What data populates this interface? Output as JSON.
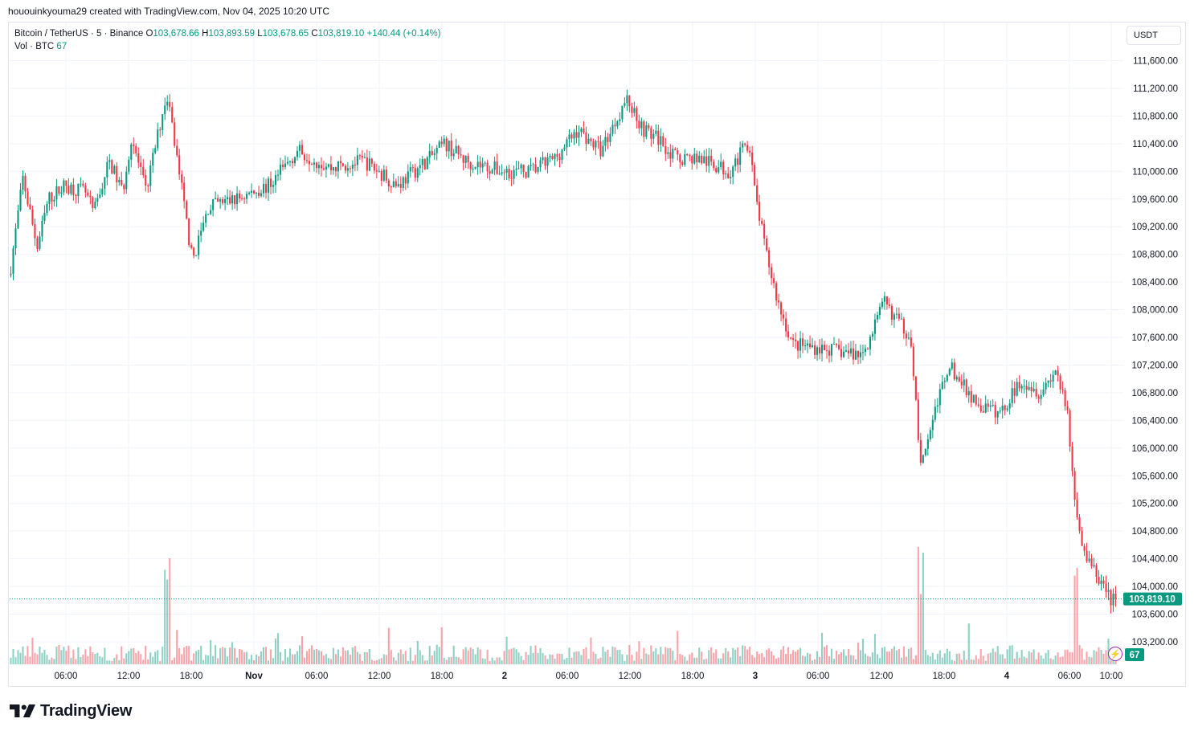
{
  "credit": "hououinkyouma29 created with TradingView.com, Nov 04, 2025 10:20 UTC",
  "legend": {
    "symbol": "Bitcoin / TetherUS · 5 · Binance",
    "open_label": "O",
    "open": "103,678.66",
    "high_label": "H",
    "high": "103,893.59",
    "low_label": "L",
    "low": "103,678.65",
    "close_label": "C",
    "close": "103,819.10",
    "change": "+140.44 (+0.14%)",
    "vol_label": "Vol · BTC",
    "vol_value": "67"
  },
  "currency_button": "USDT",
  "brand": {
    "name": "TradingView"
  },
  "icons": {
    "flash": "lightning-icon",
    "logo": "tradingview-logo-icon"
  },
  "colors": {
    "up": "#089981",
    "down": "#f23645",
    "grid": "#f0f3fa",
    "price_tag": "#089981",
    "alert": "#9c27b0"
  },
  "chart_data": {
    "type": "candlestick",
    "symbol": "BTCUSDT",
    "interval": "5",
    "exchange": "Binance",
    "x": [
      "Oct 31 06:00",
      "Oct 31 12:00",
      "Oct 31 18:00",
      "Nov 1 00:00",
      "Nov 1 06:00",
      "Nov 1 12:00",
      "Nov 1 18:00",
      "Nov 2 00:00",
      "Nov 2 06:00",
      "Nov 2 12:00",
      "Nov 2 18:00",
      "Nov 3 00:00",
      "Nov 3 06:00",
      "Nov 3 12:00",
      "Nov 3 18:00",
      "Nov 4 00:00",
      "Nov 4 06:00",
      "Nov 4 10:00"
    ],
    "x_tick_labels": [
      "06:00",
      "12:00",
      "18:00",
      "Nov",
      "06:00",
      "12:00",
      "18:00",
      "2",
      "06:00",
      "12:00",
      "18:00",
      "3",
      "06:00",
      "12:00",
      "18:00",
      "4",
      "06:00",
      "10:00"
    ],
    "y_tick_labels": [
      "111,600.00",
      "111,200.00",
      "110,800.00",
      "110,400.00",
      "110,000.00",
      "109,600.00",
      "109,200.00",
      "108,800.00",
      "108,400.00",
      "108,000.00",
      "107,600.00",
      "107,200.00",
      "106,800.00",
      "106,400.00",
      "106,000.00",
      "105,600.00",
      "105,200.00",
      "104,800.00",
      "104,400.00",
      "104,000.00",
      "103,600.00",
      "103,200.00"
    ],
    "ylim": [
      102950,
      111700
    ],
    "price_path": [
      [
        0,
        108500
      ],
      [
        1.2,
        109900
      ],
      [
        2.5,
        108900
      ],
      [
        3.5,
        109600
      ],
      [
        5,
        109800
      ],
      [
        6.8,
        109700
      ],
      [
        7.6,
        109400
      ],
      [
        9,
        110150
      ],
      [
        10.2,
        109700
      ],
      [
        11,
        110500
      ],
      [
        12.3,
        109700
      ],
      [
        14.2,
        111150
      ],
      [
        15.4,
        109900
      ],
      [
        16.5,
        108700
      ],
      [
        18,
        109500
      ],
      [
        20.5,
        109600
      ],
      [
        23.5,
        109800
      ],
      [
        26,
        110300
      ],
      [
        29,
        110050
      ],
      [
        32,
        110150
      ],
      [
        35,
        109800
      ],
      [
        38,
        110200
      ],
      [
        39.3,
        110400
      ],
      [
        41.2,
        110150
      ],
      [
        44.6,
        110000
      ],
      [
        47,
        110000
      ],
      [
        49.3,
        110200
      ],
      [
        51.3,
        110600
      ],
      [
        53.4,
        110300
      ],
      [
        55.7,
        111050
      ],
      [
        57.3,
        110600
      ],
      [
        58.8,
        110450
      ],
      [
        60,
        110200
      ],
      [
        62,
        110200
      ],
      [
        65,
        110000
      ],
      [
        66.8,
        110450
      ],
      [
        67.2,
        109800
      ],
      [
        68.2,
        108900
      ],
      [
        69.4,
        108100
      ],
      [
        70.7,
        107500
      ],
      [
        73,
        107450
      ],
      [
        74.8,
        107400
      ],
      [
        77,
        107350
      ],
      [
        79,
        108100
      ],
      [
        81.4,
        107600
      ],
      [
        82.3,
        105700
      ],
      [
        83.3,
        106400
      ],
      [
        84.8,
        107200
      ],
      [
        87.5,
        106600
      ],
      [
        89.5,
        106500
      ],
      [
        91.4,
        107000
      ],
      [
        93.1,
        106800
      ],
      [
        94.5,
        107150
      ],
      [
        95.6,
        106400
      ],
      [
        96.3,
        105000
      ],
      [
        97.3,
        104400
      ],
      [
        99.5,
        103800
      ],
      [
        100,
        103819
      ]
    ],
    "last_price": "103,819.10",
    "last_volume": "67",
    "volume_spike_positions": [
      14.2,
      82.3,
      96.3
    ]
  }
}
